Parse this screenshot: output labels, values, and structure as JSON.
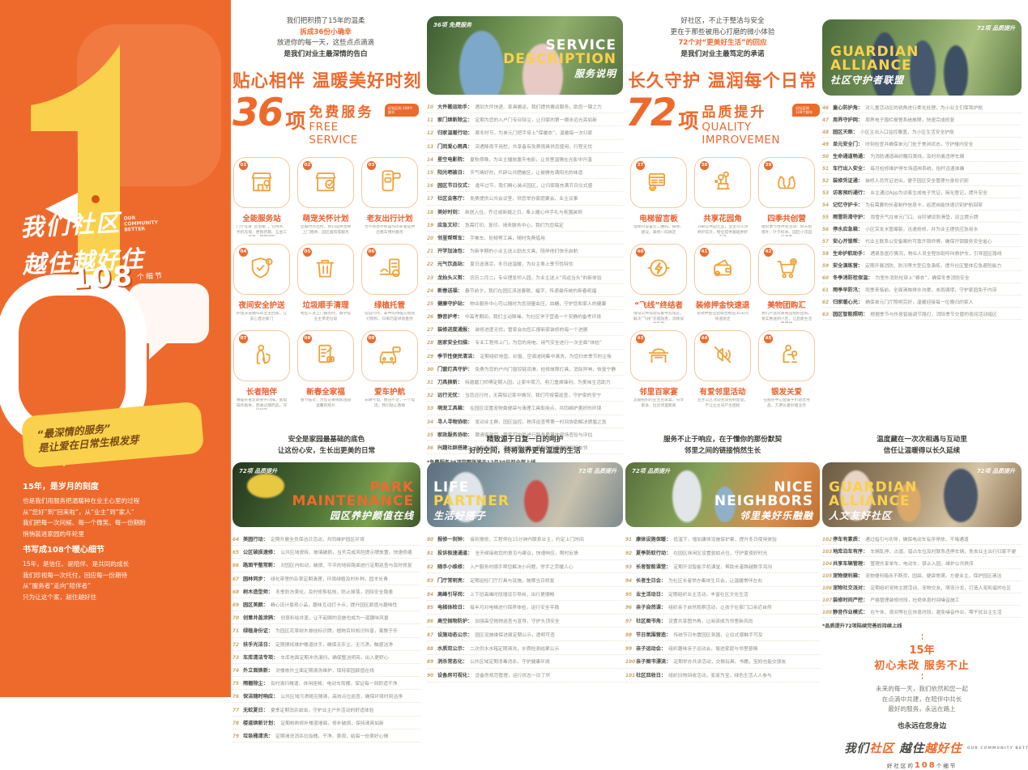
{
  "colors": {
    "orange": "#EE6A2C",
    "accent": "#ED6A2C",
    "gold": "#F0A33C",
    "yellow": "#F9D14C"
  },
  "sidebar": {
    "title1": "我们社区",
    "title1_en": "OUR COMMUNITY BETTER",
    "title2": "越住越好住",
    "badge_prefix": "好社区的",
    "badge_number": "108",
    "badge_suffix": "个细节",
    "bubble1": "“最深情的服务”",
    "bubble2": "是让爱在日常生根发芽",
    "para1_title": "15年，是岁月的刻度",
    "para1": [
      "也是我们用服务把温暖种在业主心里的过程",
      "从“您好”到“回来啦”，从“业主”到“家人”",
      "我们把每一次问候、每一个微笑、每一份期盼",
      "悄悄装进家园的年轮里"
    ],
    "para2_title": "书写成108个暖心细节",
    "para2": [
      "15年，是信任、是陪伴、是共同的成长",
      "我们珍视每一次托付，回应每一份期待",
      "从“服务者”走向“陪伴者”",
      "只为让这个家，越住越好住"
    ]
  },
  "top_left": {
    "intro": [
      {
        "text": "我们把积攒了15年的温柔"
      },
      {
        "text": "拆成36份小确幸",
        "accent": true
      },
      {
        "text": "放进你的每一天，这些点点滴滴"
      },
      {
        "text": "是我们对业主最深情的告白",
        "bold": true
      }
    ],
    "headline": "贴心相伴 温暖美好时刻",
    "big_number": "36",
    "unit": "项",
    "cn": "免费服务",
    "en": "FREE SERVICE",
    "bubble": "好社区的 108个细节",
    "grid": [
      {
        "num": "01",
        "icon": "store",
        "label": "全能服务站",
        "desc": "门厅化身“百宝箱”，饮用水、手机充电、便民药箱、五金工具箱，随需随取"
      },
      {
        "num": "02",
        "icon": "pet",
        "label": "萌宠关怀计划",
        "desc": "您临时外出时，我们提供宠物上门喂养、园区遛狗等服务"
      },
      {
        "num": "03",
        "icon": "taxi-phone",
        "label": "老友出行计划",
        "desc": "为不熟悉手机操作的长者提供出租车预约服务"
      },
      {
        "num": "04",
        "icon": "shield",
        "label": "夜间安全护送",
        "desc": "护送深夜晚归的业主回家，让安心直达家门"
      },
      {
        "num": "05",
        "icon": "trash",
        "label": "垃圾顺手清理",
        "desc": "物业人员上门服务时，顺手帮业主带走垃圾"
      },
      {
        "num": "06",
        "icon": "plant",
        "label": "绿植托管",
        "desc": "您远行时，家中的绿植交给我们照料，归来仍是绿意盎然"
      },
      {
        "num": "07",
        "icon": "elder",
        "label": "长者陪伴",
        "desc": "独居长者定期关怀问候，家电操作指导，回收过期药品，守护如常"
      },
      {
        "num": "08",
        "icon": "photo-checklist",
        "label": "新春全家福",
        "desc": "春节临近，为您记录阖家团圆温馨的照片"
      },
      {
        "num": "09",
        "icon": "car",
        "label": "爱车护航",
        "desc": "车辆亏电、胎压不足，一个电话，我们贴心救助"
      }
    ]
  },
  "service_list": {
    "photo": {
      "brand": "36项 免费服务",
      "en1": "SERVICE",
      "en2": "DESCRIPTION",
      "cn": "服务说明"
    },
    "items": [
      {
        "num": "10",
        "label": "大件搬运助手",
        "desc": "遇到大件快递、家具搬运，我们提供搬运服务，助您一臂之力"
      },
      {
        "num": "11",
        "label": "家门焕新除尘",
        "desc": "定期为您的入户门专业除尘，让归家的第一眼永远光亮如新"
      },
      {
        "num": "12",
        "label": "归家温暖行动",
        "desc": "寒冬时节，为单元门把手穿上“保暖衣”，温暖每一次归家"
      },
      {
        "num": "13",
        "label": "门岗爱心雨具",
        "desc": "突遇降雨不用愁，共享备有免费雨具供您使用，行程无忧"
      },
      {
        "num": "14",
        "label": "星空电影院",
        "desc": "夏秋傍晚，为业主播放露天电影，让邻里温情在光影中升温"
      },
      {
        "num": "15",
        "label": "阳光晒被日",
        "desc": "天气晴好时，开辟公共晒被区，让被褥充满阳光的味道"
      },
      {
        "num": "16",
        "label": "园区节日仪式",
        "desc": "逢年过节，我们精心装点园区，让归家路充满节日仪式感"
      },
      {
        "num": "17",
        "label": "社区会客厅",
        "desc": "免费提供公共会议室，供您举办家庭聚会、业主议事"
      },
      {
        "num": "18",
        "label": "美好时刻",
        "desc": "新居入住、乔迁或新婚之日，奉上暖心伴手礼与氛围装饰"
      },
      {
        "num": "19",
        "label": "应急文印",
        "desc": "急需打印、复印，请来服务中心，我们为您搞定"
      },
      {
        "num": "20",
        "label": "邻里帮帮车",
        "desc": "手推车、轮椅等工具，随时免费借用"
      },
      {
        "num": "21",
        "label": "开学加油包",
        "desc": "为新学期的小业主送上励志文具，陪伴他们快乐启航"
      },
      {
        "num": "22",
        "label": "元气饮品站",
        "desc": "夏日送清凉，冬日送温暖，为业主奉上季节性特饮"
      },
      {
        "num": "23",
        "label": "龙抬头义剪",
        "desc": "农历二月二，专业理发师入园，为业主送上“鸿运当头”的新体验"
      },
      {
        "num": "24",
        "label": "新春送福",
        "desc": "春节前夕，我们在园区派送春联、福字，传递最传统的新春祝福"
      },
      {
        "num": "25",
        "label": "健康守护站",
        "desc": "物业服务中心可以随时为您测量血压、血糖，守护您和家人的健康"
      },
      {
        "num": "26",
        "label": "静音护考",
        "desc": "中高考期间，我们主动降噪，为社区学子营造一个安静的备考环境"
      },
      {
        "num": "27",
        "label": "装修进度通报",
        "desc": "装修进度无忧，管家会向您汇报新家装修的每一个进展"
      },
      {
        "num": "28",
        "label": "居家安全扫描",
        "desc": "专业工程师上门，为您的用电、用气安全进行一次全面“体检”"
      },
      {
        "num": "29",
        "label": "季节性便民清洁",
        "desc": "定期组织地垫、纱窗、空调滤网集中清洗，为您扫去季节的尘埃"
      },
      {
        "num": "30",
        "label": "门窗灯具守护",
        "desc": "免费为您的户内门窗铰链润滑，检修故障灯具，消除异响，恢复宁静"
      },
      {
        "num": "31",
        "label": "刀具换新",
        "desc": "特邀磨刀师傅定期入园，让家中菜刀、剪刀重焕锋利，为美味生活助力"
      },
      {
        "num": "32",
        "label": "远行无忧",
        "desc": "当您远行时，无需惦记家中情况，我们可按需巡查，守护家的安宁"
      },
      {
        "num": "33",
        "label": "萌宠工具箱",
        "desc": "在园区设置宠物粪便袋与清理工具取用点，共同维护美好的环境"
      },
      {
        "num": "34",
        "label": "寻人寻物协助",
        "desc": "发动业主群、园区监控、秩序巡查等第一时间协助解决燃眉之急"
      },
      {
        "num": "35",
        "label": "家政服务协助",
        "desc": "聘请家政后，管家可协助进行服务质量的现场查验与评估"
      },
      {
        "num": "36",
        "label": "兴趣社群搭建",
        "desc": "协助您寻找、建立兴趣社群，帮助您快速找到同好友邻"
      }
    ],
    "footnote": "*免费服务36项完整版将于12月30日前全部上线"
  },
  "top_right": {
    "intro": [
      {
        "text": "好社区，不止于整洁与安全"
      },
      {
        "text": "更在于那些被用心打磨的微小体验"
      },
      {
        "text": "72个对“更美好生活”的回应",
        "accent": true
      },
      {
        "text": "是我们对业主最笃定的承诺",
        "bold": true
      }
    ],
    "headline": "长久守护 温润每个日常",
    "big_number": "72",
    "unit": "项",
    "cn": "品质提升",
    "en": "QUALITY IMPROVEMEN",
    "bubble": "好社区的 108个细节",
    "grid": [
      {
        "num": "37",
        "icon": "notice-board",
        "label": "电梯留言板",
        "desc": "电梯内设置云二维码，报修、建议、表扬一码搞定"
      },
      {
        "num": "38",
        "icon": "flower",
        "label": "共享花园角",
        "desc": "开辟公共园艺区，业主可认领养护花卉，物业提供基础养护支持"
      },
      {
        "num": "39",
        "icon": "gloves",
        "label": "四季共创营",
        "desc": "组织季节性共创活动：秋天拾落叶、叶子标本、园区小花园打造等"
      },
      {
        "num": "40",
        "icon": "power",
        "label": "“飞线”终结者",
        "desc": "增设公共电动车集中充电区，解决“飞线”充电隐患，消除安全隐患"
      },
      {
        "num": "41",
        "icon": "wallet",
        "label": "装修押金快速退",
        "desc": "装修押金在验收合格后30天内快速退还"
      },
      {
        "num": "42",
        "icon": "cart",
        "label": "美物团购汇",
        "desc": "我们严选优质商品组织团购，将实惠送到小区，让品质生活更便捷"
      },
      {
        "num": "43",
        "icon": "banquet",
        "label": "邻里百家宴",
        "desc": "定期组织的业主百家宴，分享美食，拉近邻里距离"
      },
      {
        "num": "44",
        "icon": "mute",
        "label": "有爱邻里活动",
        "desc": "业主公区活动主动控制音量，不让业主间产生困扰"
      },
      {
        "num": "45",
        "icon": "elder-care",
        "label": "银发关爱",
        "desc": "在服务中心配置平价适老用品，方便长者办理业务"
      }
    ]
  },
  "guardian_list": {
    "photo": {
      "brand": "72项 品质提升",
      "en1": "GUARDIAN",
      "en2": "ALLIANCE",
      "cn": "社区守护者联盟"
    },
    "items": [
      {
        "num": "46",
        "label": "童心防护角",
        "desc": "对儿童活动区的锐角进行柔化处理，为小业主们保驾护航"
      },
      {
        "num": "47",
        "label": "周界守护网",
        "desc": "周界电子围栏报警系统故障，快速完成修复"
      },
      {
        "num": "48",
        "label": "园区天眼",
        "desc": "小区主出入口监控覆盖，为小区生活安全护航"
      },
      {
        "num": "49",
        "label": "单元安全门",
        "desc": "时刻检查并确保单元门处于常闭状态，守护楼内安全"
      },
      {
        "num": "50",
        "label": "生命通道畅通",
        "desc": "为消防通道画好醒目黄线，及时劝离违停车辆"
      },
      {
        "num": "51",
        "label": "车行出入安全",
        "desc": "每月检修维护停车场道闸系统，抬杆迅速准确"
      },
      {
        "num": "52",
        "label": "装修凭证通",
        "desc": "装修人员凭证进出，便于园区安全管理与身份识别"
      },
      {
        "num": "53",
        "label": "访客预约通行",
        "desc": "业主通过App为访客生成电子凭证，简化登记，提升安全"
      },
      {
        "num": "54",
        "label": "记忆守护卡",
        "desc": "为有需要的长者制作信息卡，巡逻岗能快速识别护航回家"
      },
      {
        "num": "55",
        "label": "雨雪防滑守护",
        "desc": "雨雪天气在单元门口、台阶铺设防滑垫，设立提示牌"
      },
      {
        "num": "56",
        "label": "停水应急箱",
        "desc": "小区突发水管爆裂，迅速抢修，并为业主提供应急用水"
      },
      {
        "num": "57",
        "label": "安心开锁帮",
        "desc": "代业主联系公安备案的可靠开锁师傅，确保开锁服务安全省心"
      },
      {
        "num": "58",
        "label": "生命护航助手",
        "desc": "遇紧急医疗情况，物业人员全程协助呼叫救护车，引导园区路线"
      },
      {
        "num": "59",
        "label": "安全演练营",
        "desc": "定期开展消防、防汛等大型应急演练，提升社区整体应急避险能力"
      },
      {
        "num": "60",
        "label": "冬季消防栓保温",
        "desc": "为室外消防栓穿上“棉衣”，确保冬季消防安全"
      },
      {
        "num": "61",
        "label": "雨季早防汛",
        "desc": "雨季来临前，全面清掏排水沟渠，未雨绸缪，守护家园免于内涝"
      },
      {
        "num": "62",
        "label": "归家暖心光",
        "desc": "确保单元门厅照明完好，温暖迎接每一位晚归的家人"
      },
      {
        "num": "63",
        "label": "园区智能照明",
        "desc": "根据季节与作息智能调节路灯，消除季节交替的夜间活动暗区"
      }
    ]
  },
  "bottom": {
    "park": {
      "intro": [
        "安全是家园最基础的底色",
        "让这份心安，生长出更美的日常"
      ],
      "photo": {
        "brand": "72项 品质提升",
        "en1": "PARK",
        "en2": "MAINTENANCE",
        "cn": "园区养护颜值在线"
      },
      "items": [
        {
          "num": "64",
          "label": "美园行动",
          "desc": "定期开展全员保洁日活动，共同维护园区环境"
        },
        {
          "num": "65",
          "label": "公区破损速修",
          "desc": "公共区域瓷砖、玻璃破损，当天完成风险提示牌放置，快速修缮"
        },
        {
          "num": "66",
          "label": "路面平整常新",
          "desc": "对园区内松动、破损、不平的地砖路面进行定期巡查与及时修复"
        },
        {
          "num": "67",
          "label": "园林同步",
          "desc": "绿化带里的杂草定期清理，环境绿植及时补种，园木长青"
        },
        {
          "num": "68",
          "label": "树木造型师",
          "desc": "冬季防冻美化，及时修剪枯枝，防止掉落，消除安全隐患"
        },
        {
          "num": "69",
          "label": "园区美颜",
          "desc": "精心设计景观小品，趣味互动打卡点，提升园区颜值与趣味性"
        },
        {
          "num": "70",
          "label": "创意井盖涂鸦",
          "desc": "创意彩绘井盖，让不起眼的设施也成为一道趣味风景"
        },
        {
          "num": "71",
          "label": "绿植身份证",
          "desc": "为园区花草树木悬挂标识牌，植物百科知识科普，寓教于乐"
        },
        {
          "num": "72",
          "label": "扶手光洁日",
          "desc": "定期擦拭维护楼道扶手，确保无灰尘、无污渍，触感洁净"
        },
        {
          "num": "73",
          "label": "车库清洁专项",
          "desc": "车库地面定期冲洗清扫，确保整洁明亮，出入更舒心"
        },
        {
          "num": "74",
          "label": "外立面焕新",
          "desc": "对楼栋外立面定期清洗维护，保持家园颜值在线"
        },
        {
          "num": "75",
          "label": "雨棚除尘",
          "desc": "及时清扫楼道、休闲座椅、电动车雨棚，保证每一刻舒适干净"
        },
        {
          "num": "76",
          "label": "保洁随时响应",
          "desc": "公共区域污渍随见随清，高效点位巡查，确保环境时刻洁净"
        },
        {
          "num": "77",
          "label": "无蚊夏日",
          "desc": "夏季定期消杀蚊虫，守护业主户外活动的舒适体验"
        },
        {
          "num": "78",
          "label": "楼道焕新计划",
          "desc": "定期粉刷修补楼道墙面，修补破损，保持清爽如新"
        },
        {
          "num": "79",
          "label": "垃圾桶清洗",
          "desc": "定期清洗消杀垃圾桶，干净、美观，给每一份美好心情"
        }
      ]
    },
    "life": {
      "intro": [
        "精致源于日复一日的呵护",
        "好的空间，终将滋养更有温度的生活"
      ],
      "photo": {
        "brand": "72项 品质提升",
        "en1": "LIFE",
        "en2": "PARTNER",
        "cn": "生活好搭子"
      },
      "items": [
        {
          "num": "80",
          "label": "报修一刻钟",
          "desc": "接到报修，工程师在15分钟内联系业主，约定上门时间"
        },
        {
          "num": "81",
          "label": "投诉极速通道",
          "desc": "全天候接收您的意见与建议，快速响应，限时反馈"
        },
        {
          "num": "82",
          "label": "随手小维修",
          "desc": "入户服务时顺手帮您解决小问题，举手之劳暖人心"
        },
        {
          "num": "83",
          "label": "门厅常明亮",
          "desc": "定期巡检门厅灯具与设施，故障当日修复"
        },
        {
          "num": "84",
          "label": "高峰引导岗",
          "desc": "上下班高峰时段增设引导岗，出行更顺畅"
        },
        {
          "num": "85",
          "label": "电梯体检日",
          "desc": "每半月对电梯进行保养体检，运行安全平稳"
        },
        {
          "num": "86",
          "label": "高空抛物防护",
          "desc": "加强高空抛物巡查与宣导，守护头顶安全"
        },
        {
          "num": "87",
          "label": "设施动态公示",
          "desc": "园区设施维保进展定期公示，透明可查"
        },
        {
          "num": "88",
          "label": "水质双公示",
          "desc": "二次供水水箱定期清洗，水质检测结果公示"
        },
        {
          "num": "89",
          "label": "消杀常态化",
          "desc": "公共区域定期消毒消杀，守护健康环境"
        },
        {
          "num": "90",
          "label": "设备房可视化",
          "desc": "设备房规范管理，运行状态一目了然"
        }
      ]
    },
    "neighbors": {
      "intro": [
        "服务不止于响应，在于懂你的那份默契",
        "邻里之间的链接悄然生长"
      ],
      "photo": {
        "brand": "72项 品质提升",
        "en1": "NICE",
        "en2": "NEIGHBORS",
        "cn": "邻里美好乐融融"
      },
      "items": [
        {
          "num": "91",
          "label": "康体设施保暖",
          "desc": "低温下，增加康体设施保护套，提升冬日使用体验"
        },
        {
          "num": "92",
          "label": "夏季防蚊行动",
          "desc": "在园区休闲区设置驱蚊点位，守护夏夜好时光"
        },
        {
          "num": "93",
          "label": "长者智能课堂",
          "desc": "定期开设智能手机课堂，帮助长者跨越数字鸿沟"
        },
        {
          "num": "94",
          "label": "长者生日会",
          "desc": "为社区长者举办集体生日会，让温暖常伴左右"
        },
        {
          "num": "95",
          "label": "业主活动日",
          "desc": "定期组织业主活动，丰富社区文化生活"
        },
        {
          "num": "96",
          "label": "亲子自然课",
          "desc": "组织亲子自然观察活动，让孩子在家门口亲近自然"
        },
        {
          "num": "97",
          "label": "社区图书角",
          "desc": "设置共享图书角，让阅读成为邻里新风尚"
        },
        {
          "num": "98",
          "label": "节日氛围营造",
          "desc": "传统节日布置园区氛围，让仪式感触手可及"
        },
        {
          "num": "99",
          "label": "亲子运动会",
          "desc": "组织趣味亲子运动会，增进家庭与邻里感情"
        },
        {
          "num": "100",
          "label": "亲子图书漂流",
          "desc": "定期举办共读活动，交换玩具、书籍，宝妈也能交朋友"
        },
        {
          "num": "101",
          "label": "社区回收日",
          "desc": "组织旧物回收活动，变废为宝，绿色生活人人参与"
        }
      ]
    },
    "human": {
      "intro": [
        "温度藏在一次次相遇与互动里",
        "信任让温暖得以长久延续"
      ],
      "photo": {
        "brand": "72项 品质提升",
        "en1": "GUARDIAN",
        "en2": "ALLIANCE",
        "cn": "人文友好社区"
      },
      "items": [
        {
          "num": "102",
          "label": "停车有素质",
          "desc": "通过指引与劝导，确保电动车有序停放，不堵通道"
        },
        {
          "num": "103",
          "label": "地库泊车有序",
          "desc": "车辆乱停、占道、错占车位及时联系违停车辆，免去业主出行归家不便"
        },
        {
          "num": "104",
          "label": "共享车辆管理",
          "desc": "管理共享单车、电动车，禁止入园，维护公共秩序"
        },
        {
          "num": "105",
          "label": "宠物便利箱",
          "desc": "宠物便利箱永不断货，园袋、便袋常满，方便业主，保护园区清洁"
        },
        {
          "num": "106",
          "label": "宠物社交派对",
          "desc": "定期组织宠物主题活动，宠物交友、萌宠沙龙，打造人宠和谐的社区"
        },
        {
          "num": "107",
          "label": "装修时间严控",
          "desc": "严格管理装修时段，杜绝休息时间噪音施工"
        },
        {
          "num": "108",
          "label": "静音作业模式",
          "desc": "在午休、夜间等社区休息时段，避免噪音作业，零干扰业主生活"
        }
      ],
      "footnote": "*品质提升72项陆续完善后持续上线",
      "closing": {
        "title1": "15年",
        "title2": "初心未改 服务不止",
        "lines": [
          "未来的每一天，我们依然和您一起",
          "在点滴中共建，在陪伴中共长",
          "最好的服务，永远在路上"
        ],
        "also": "也永远在您身边",
        "logo_p1": "我们",
        "logo_p2": "社区",
        "logo_p3": "越住",
        "logo_p4": "越好住",
        "logo_en": "OUR COMMUNITY BETTER",
        "tagline_prefix": "好社区的",
        "tagline_num": "108",
        "tagline_suffix": "个细节"
      }
    }
  }
}
